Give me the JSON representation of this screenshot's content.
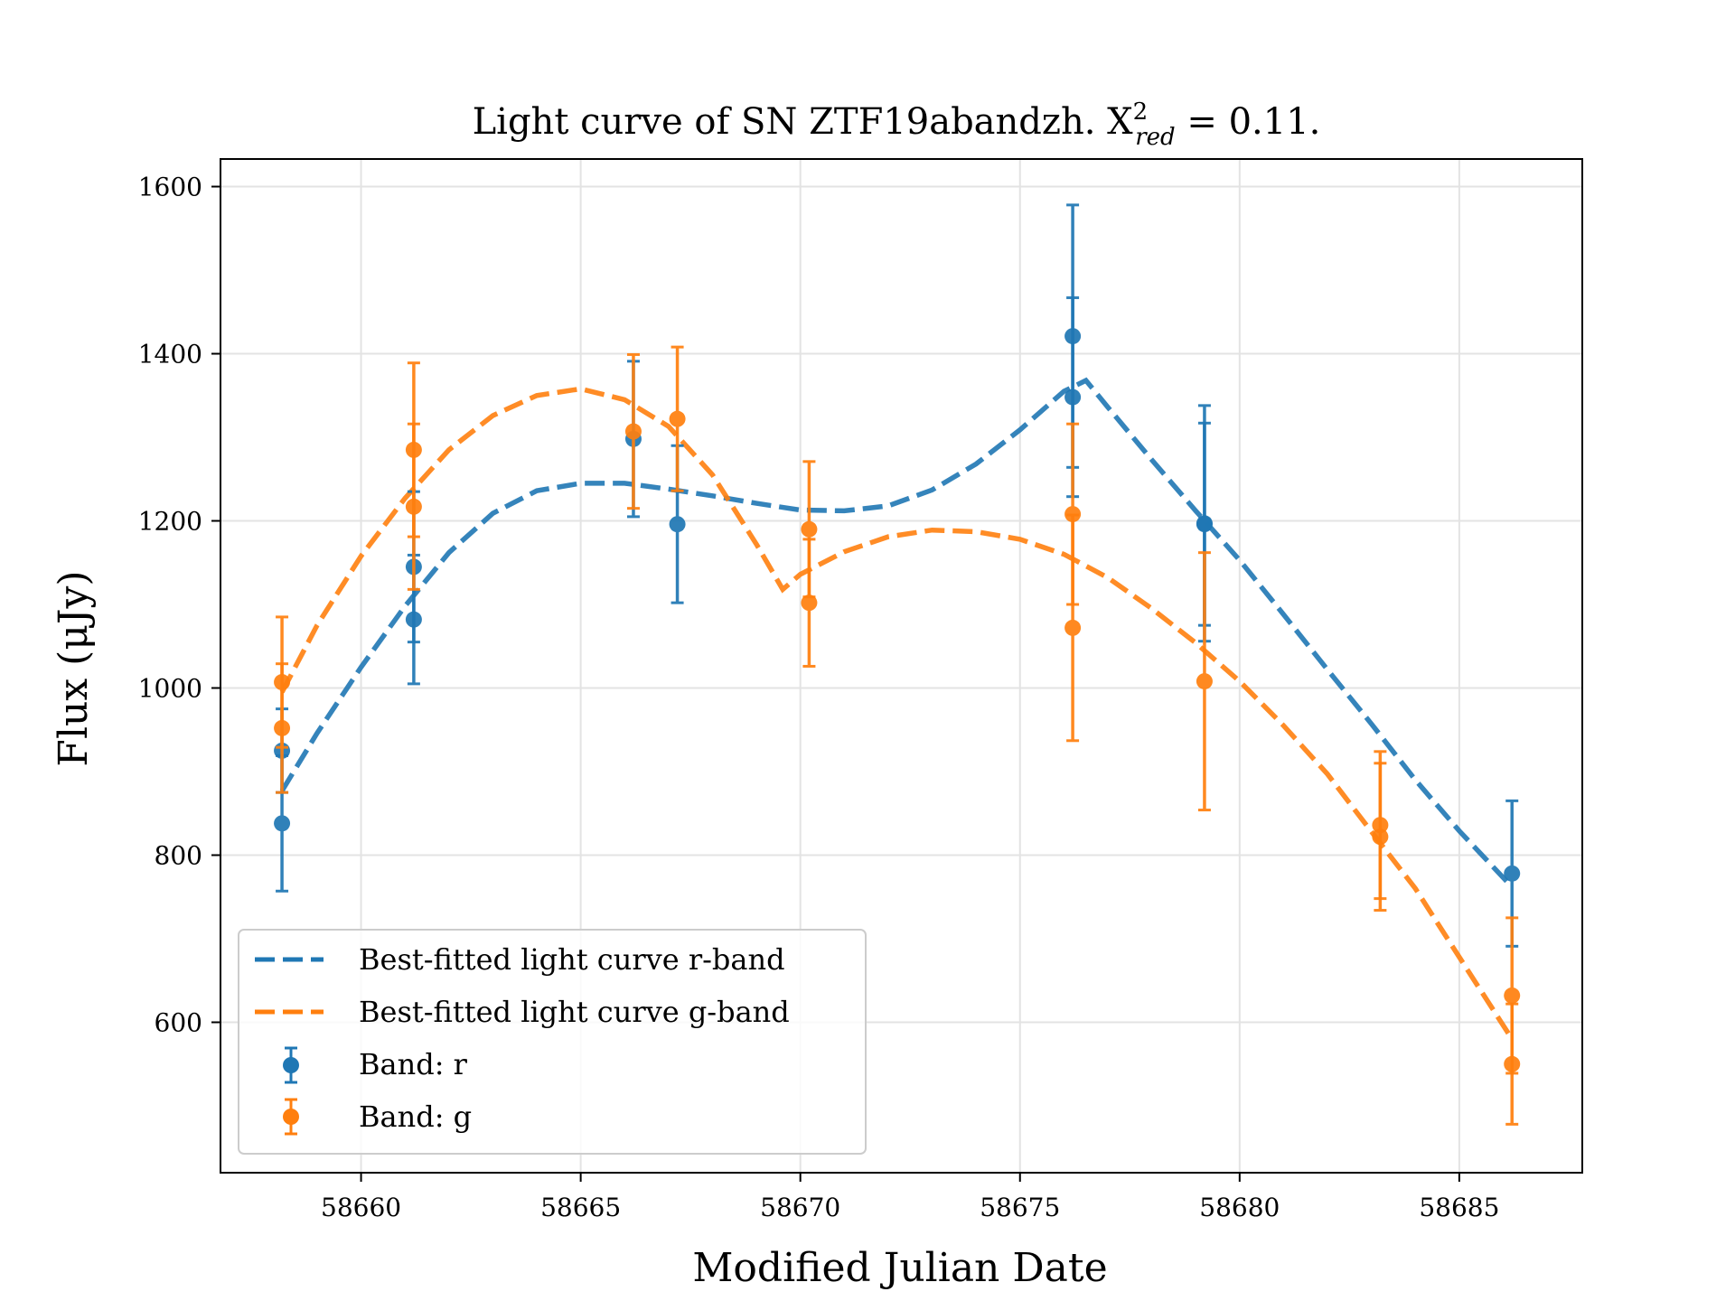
{
  "chart_data": {
    "type": "scatter",
    "title": {
      "main": "Light curve of SN ZTF19abandzh. X",
      "sup": "2",
      "sub": "red",
      "tail": " = 0.11."
    },
    "xlabel": "Modified Julian Date",
    "ylabel": "Flux (μJy)",
    "xlim": [
      58656.8,
      58687.8
    ],
    "ylim": [
      420,
      1633
    ],
    "xticks": [
      58660,
      58665,
      58670,
      58675,
      58680,
      58685
    ],
    "xtick_labels": [
      "58660",
      "58665",
      "58670",
      "58675",
      "58680",
      "58685"
    ],
    "yticks": [
      600,
      800,
      1000,
      1200,
      1400,
      1600
    ],
    "ytick_labels": [
      "600",
      "800",
      "1000",
      "1200",
      "1400",
      "1600"
    ],
    "grid": true,
    "legend_position": "lower-left",
    "series": [
      {
        "name": "Band: r",
        "kind": "errorbar",
        "color": "#1f77b4",
        "points": [
          {
            "x": 58658.2,
            "y": 925,
            "err": 50
          },
          {
            "x": 58658.2,
            "y": 838,
            "err": 81
          },
          {
            "x": 58661.2,
            "y": 1145,
            "err": 90
          },
          {
            "x": 58661.2,
            "y": 1082,
            "err": 77
          },
          {
            "x": 58666.2,
            "y": 1298,
            "err": 93
          },
          {
            "x": 58667.2,
            "y": 1196,
            "err": 94
          },
          {
            "x": 58676.2,
            "y": 1421,
            "err": 157
          },
          {
            "x": 58676.2,
            "y": 1348,
            "err": 119
          },
          {
            "x": 58679.2,
            "y": 1197,
            "err": 141
          },
          {
            "x": 58679.2,
            "y": 1196,
            "err": 121
          },
          {
            "x": 58686.2,
            "y": 778,
            "err": 87
          }
        ]
      },
      {
        "name": "Band: g",
        "kind": "errorbar",
        "color": "#ff7f0e",
        "points": [
          {
            "x": 58658.2,
            "y": 1007,
            "err": 78
          },
          {
            "x": 58658.2,
            "y": 952,
            "err": 77
          },
          {
            "x": 58661.2,
            "y": 1285,
            "err": 104
          },
          {
            "x": 58661.2,
            "y": 1217,
            "err": 99
          },
          {
            "x": 58666.2,
            "y": 1307,
            "err": 92
          },
          {
            "x": 58667.2,
            "y": 1322,
            "err": 86
          },
          {
            "x": 58670.2,
            "y": 1190,
            "err": 81
          },
          {
            "x": 58670.2,
            "y": 1102,
            "err": 76
          },
          {
            "x": 58676.2,
            "y": 1208,
            "err": 108
          },
          {
            "x": 58676.2,
            "y": 1072,
            "err": 135
          },
          {
            "x": 58679.2,
            "y": 1008,
            "err": 154
          },
          {
            "x": 58683.2,
            "y": 836,
            "err": 88
          },
          {
            "x": 58683.2,
            "y": 822,
            "err": 88
          },
          {
            "x": 58686.2,
            "y": 632,
            "err": 93
          },
          {
            "x": 58686.2,
            "y": 550,
            "err": 72
          }
        ]
      },
      {
        "name": "Best-fitted light curve r-band",
        "kind": "line",
        "style": "dashed",
        "color": "#1f77b4",
        "x": [
          58658.2,
          58659,
          58660,
          58661,
          58662,
          58663,
          58664,
          58665,
          58666,
          58667,
          58668,
          58669,
          58670,
          58671,
          58672,
          58673,
          58674,
          58675,
          58676,
          58676.5,
          58677,
          58678,
          58679,
          58680,
          58681,
          58682,
          58683,
          58684,
          58685,
          58686.2
        ],
        "y": [
          877,
          946,
          1025,
          1098,
          1162,
          1209,
          1236,
          1245,
          1245,
          1238,
          1230,
          1221,
          1213,
          1212,
          1218,
          1237,
          1268,
          1309,
          1355,
          1368,
          1336,
          1273,
          1212,
          1153,
          1088,
          1022,
          957,
          890,
          829,
          762
        ]
      },
      {
        "name": "Best-fitted light curve g-band",
        "kind": "line",
        "style": "dashed",
        "color": "#ff7f0e",
        "x": [
          58658.2,
          58659,
          58660,
          58661,
          58662,
          58663,
          58664,
          58665,
          58666,
          58667,
          58668,
          58669,
          58669.6,
          58670,
          58671,
          58672,
          58673,
          58674,
          58675,
          58676,
          58677,
          58678,
          58679,
          58680,
          58681,
          58682,
          58683,
          58684,
          58685,
          58686.2
        ],
        "y": [
          995,
          1075,
          1158,
          1227,
          1285,
          1326,
          1350,
          1358,
          1345,
          1313,
          1255,
          1172,
          1118,
          1136,
          1163,
          1181,
          1189,
          1187,
          1178,
          1160,
          1132,
          1095,
          1054,
          1008,
          955,
          897,
          828,
          760,
          678,
          580
        ]
      }
    ]
  }
}
